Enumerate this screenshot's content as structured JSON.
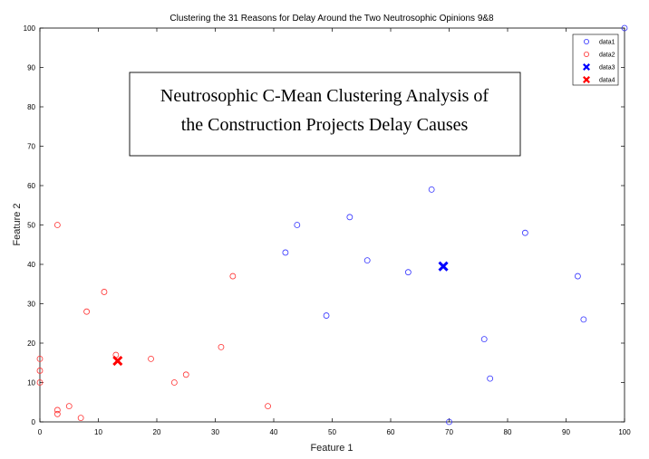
{
  "chart_data": {
    "type": "scatter",
    "title": "Clustering the 31 Reasons for Delay Around the Two Neutrosophic Opinions 9&8",
    "xlabel": "Feature 1",
    "ylabel": "Feature 2",
    "xlim": [
      0,
      100
    ],
    "ylim": [
      0,
      100
    ],
    "xticks": [
      0,
      10,
      20,
      30,
      40,
      50,
      60,
      70,
      80,
      90,
      100
    ],
    "yticks": [
      0,
      10,
      20,
      30,
      40,
      50,
      60,
      70,
      80,
      90,
      100
    ],
    "grid": false,
    "legend_position": "top-right",
    "annotation": {
      "line1": "Neutrosophic C-Mean Clustering Analysis of",
      "line2": "the Construction Projects Delay Causes"
    },
    "series": [
      {
        "name": "data1",
        "marker": "circle",
        "color": "#3333ff",
        "points": [
          [
            42,
            43
          ],
          [
            44,
            50
          ],
          [
            49,
            27
          ],
          [
            53,
            52
          ],
          [
            56,
            41
          ],
          [
            63,
            38
          ],
          [
            67,
            59
          ],
          [
            70,
            0
          ],
          [
            76,
            21
          ],
          [
            77,
            11
          ],
          [
            83,
            48
          ],
          [
            92,
            37
          ],
          [
            93,
            26
          ],
          [
            100,
            100
          ]
        ]
      },
      {
        "name": "data2",
        "marker": "circle",
        "color": "#ff3333",
        "points": [
          [
            0,
            16
          ],
          [
            0,
            13
          ],
          [
            0,
            10
          ],
          [
            3,
            50
          ],
          [
            3,
            3
          ],
          [
            3,
            2
          ],
          [
            5,
            4
          ],
          [
            7,
            1
          ],
          [
            8,
            28
          ],
          [
            11,
            33
          ],
          [
            13,
            17
          ],
          [
            19,
            16
          ],
          [
            23,
            10
          ],
          [
            25,
            12
          ],
          [
            31,
            19
          ],
          [
            33,
            37
          ],
          [
            39,
            4
          ]
        ]
      },
      {
        "name": "data3",
        "marker": "x",
        "color": "#0000ff",
        "points": [
          [
            69,
            39.5
          ]
        ]
      },
      {
        "name": "data4",
        "marker": "x",
        "color": "#ff0000",
        "points": [
          [
            13.3,
            15.5
          ]
        ]
      }
    ]
  }
}
